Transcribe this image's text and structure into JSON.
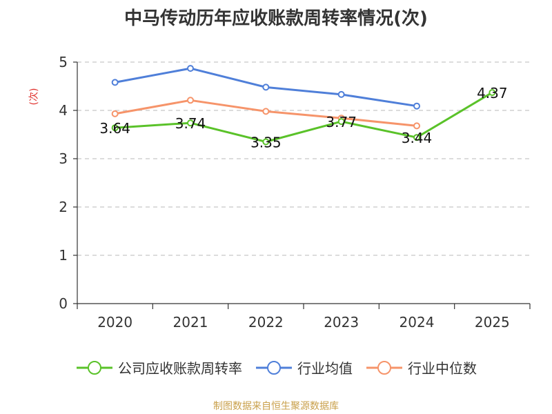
{
  "chart_data": {
    "type": "line",
    "title": "中马传动历年应收账款周转率情况(次)",
    "ylabel": "(次)",
    "xlabel": "",
    "categories": [
      "2020",
      "2021",
      "2022",
      "2023",
      "2024",
      "2025"
    ],
    "ylim": [
      0,
      5
    ],
    "yticks": [
      "0",
      "1",
      "2",
      "3",
      "4",
      "5"
    ],
    "grid": true,
    "legend_position": "bottom",
    "series": [
      {
        "name": "公司应收账款周转率",
        "color": "#5ac229",
        "values": [
          3.64,
          3.74,
          3.35,
          3.77,
          3.44,
          4.37
        ],
        "labels": [
          "3.64",
          "3.74",
          "3.35",
          "3.77",
          "3.44",
          "4.37"
        ]
      },
      {
        "name": "行业均值",
        "color": "#4f7fd9",
        "values": [
          4.58,
          4.87,
          4.48,
          4.33,
          4.09,
          null
        ]
      },
      {
        "name": "行业中位数",
        "color": "#f6946a",
        "values": [
          3.93,
          4.21,
          3.98,
          3.84,
          3.68,
          null
        ]
      }
    ]
  },
  "source": "制图数据来自恒生聚源数据库"
}
